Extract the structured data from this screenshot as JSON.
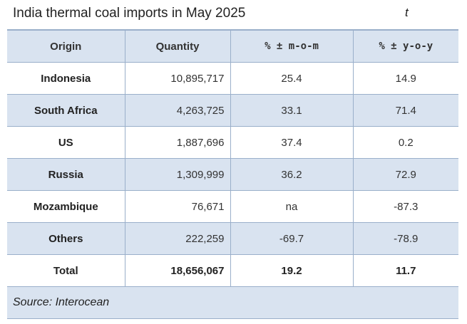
{
  "header": {
    "title": "India thermal coal imports in May 2025",
    "unit": "t"
  },
  "table": {
    "columns": [
      "Origin",
      "Quantity",
      "% ± m-o-m",
      "% ± y-o-y"
    ],
    "rows": [
      {
        "origin": "Indonesia",
        "quantity": "10,895,717",
        "mom": "25.4",
        "yoy": "14.9"
      },
      {
        "origin": "South Africa",
        "quantity": "4,263,725",
        "mom": "33.1",
        "yoy": "71.4"
      },
      {
        "origin": "US",
        "quantity": "1,887,696",
        "mom": "37.4",
        "yoy": "0.2"
      },
      {
        "origin": "Russia",
        "quantity": "1,309,999",
        "mom": "36.2",
        "yoy": "72.9"
      },
      {
        "origin": "Mozambique",
        "quantity": "76,671",
        "mom": "na",
        "yoy": "-87.3"
      },
      {
        "origin": "Others",
        "quantity": "222,259",
        "mom": "-69.7",
        "yoy": "-78.9"
      },
      {
        "origin": "Total",
        "quantity": "18,656,067",
        "mom": "19.2",
        "yoy": "11.7"
      }
    ],
    "source": "Source: Interocean"
  },
  "colors": {
    "header_fill": "#d9e3f0",
    "row_shade": "#d9e3f0",
    "rule": "#9aafca"
  }
}
